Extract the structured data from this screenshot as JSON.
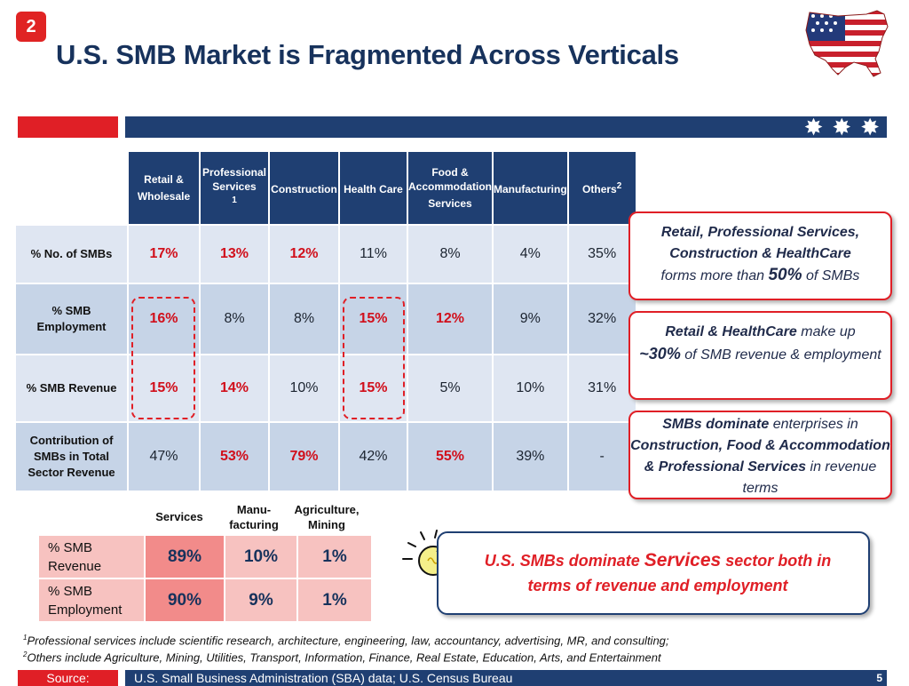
{
  "slide": {
    "badge": "2",
    "title": "U.S. SMB Market is Fragmented Across Verticals",
    "page_number": "5"
  },
  "table": {
    "columns": [
      {
        "label": "Retail & Wholesale",
        "sup": ""
      },
      {
        "label": "Professional Services",
        "sup": "1"
      },
      {
        "label": "Construction",
        "sup": ""
      },
      {
        "label": "Health Care",
        "sup": ""
      },
      {
        "label": "Food & Accommodation Services",
        "sup": ""
      },
      {
        "label": "Manufacturing",
        "sup": ""
      },
      {
        "label": "Others",
        "sup": "2"
      }
    ],
    "rows": [
      {
        "label": "% No. of SMBs",
        "values": [
          "17%",
          "13%",
          "12%",
          "11%",
          "8%",
          "4%",
          "35%"
        ],
        "highlight": [
          true,
          true,
          true,
          false,
          false,
          false,
          false
        ]
      },
      {
        "label": "% SMB Employment",
        "values": [
          "16%",
          "8%",
          "8%",
          "15%",
          "12%",
          "9%",
          "32%"
        ],
        "highlight": [
          true,
          false,
          false,
          true,
          true,
          false,
          false
        ]
      },
      {
        "label": "% SMB Revenue",
        "values": [
          "15%",
          "14%",
          "10%",
          "15%",
          "5%",
          "10%",
          "31%"
        ],
        "highlight": [
          true,
          true,
          false,
          true,
          false,
          false,
          false
        ]
      },
      {
        "label": "Contribution of SMBs in Total Sector Revenue",
        "values": [
          "47%",
          "53%",
          "79%",
          "42%",
          "55%",
          "39%",
          "-"
        ],
        "highlight": [
          false,
          true,
          true,
          false,
          true,
          false,
          false
        ]
      }
    ]
  },
  "callouts": {
    "c1": {
      "bold1": "Retail, Professional Services, Construction & HealthCare",
      "text1": "forms more than",
      "bold2": "50%",
      "text2": "of SMBs"
    },
    "c2": {
      "bold1": "Retail & HealthCare",
      "text1": "make up",
      "bold2": "~30%",
      "text2": "of SMB revenue & employment"
    },
    "c3": {
      "bold1": "SMBs dominate",
      "text1": "enterprises in",
      "bold2": "Construction, Food & Accommodation & Professional Services",
      "text2": "in revenue terms"
    }
  },
  "sectors": {
    "headers": [
      "Services",
      "Manu-facturing",
      "Agriculture, Mining"
    ],
    "rows": [
      {
        "label": "% SMB Revenue",
        "values": [
          "89%",
          "10%",
          "1%"
        ]
      },
      {
        "label": "% SMB Employment",
        "values": [
          "90%",
          "9%",
          "1%"
        ]
      }
    ]
  },
  "key_message": {
    "part1": "U.S. SMBs dominate",
    "emph": "Services",
    "part2": "sector both in terms of revenue and employment"
  },
  "footnotes": {
    "f1_sup": "1",
    "f1": "Professional services include scientific research, architecture, engineering, law, accountancy, advertising, MR, and consulting;",
    "f2_sup": "2",
    "f2": "Others include Agriculture, Mining, Utilities, Transport, Information, Finance, Real Estate, Education, Arts, and Entertainment"
  },
  "source": {
    "label": "Source:",
    "text": "U.S. Small Business Administration (SBA) data; U.S. Census Bureau"
  },
  "icons": {
    "flag": "us-flag-map-icon",
    "stars": "star-icon",
    "bulb": "lightbulb-icon"
  },
  "colors": {
    "accent_red": "#e01f26",
    "navy": "#1f3f72",
    "highlight_red": "#d10f1b"
  }
}
